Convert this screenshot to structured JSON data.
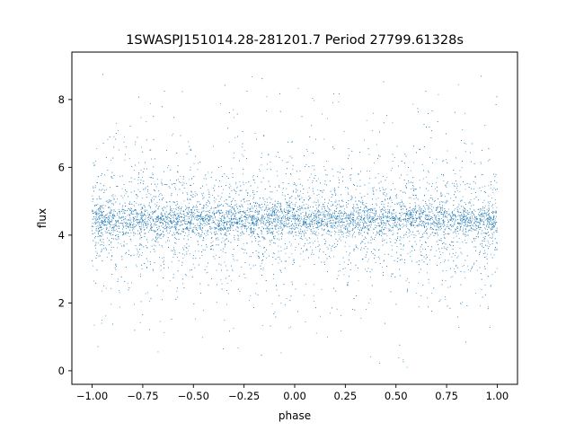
{
  "chart_data": {
    "type": "scatter",
    "title": "1SWASPJ151014.28-281201.7 Period 27799.61328s",
    "xlabel": "phase",
    "ylabel": "flux",
    "xlim": [
      -1.1,
      1.1
    ],
    "ylim": [
      -0.4,
      9.4
    ],
    "xticks": [
      "−1.00",
      "−0.75",
      "−0.50",
      "−0.25",
      "0.00",
      "0.25",
      "0.50",
      "0.75",
      "1.00"
    ],
    "xtick_values": [
      -1.0,
      -0.75,
      -0.5,
      -0.25,
      0.0,
      0.25,
      0.5,
      0.75,
      1.0
    ],
    "yticks": [
      "0",
      "2",
      "4",
      "6",
      "8"
    ],
    "ytick_values": [
      0,
      2,
      4,
      6,
      8
    ],
    "grid": false,
    "marker_color": "#1f77b4",
    "series": [
      {
        "x_range": [
          -1.0,
          1.0
        ],
        "flux_core": 4.45,
        "flux_min": 0.0,
        "flux_max": 8.9
      }
    ]
  }
}
